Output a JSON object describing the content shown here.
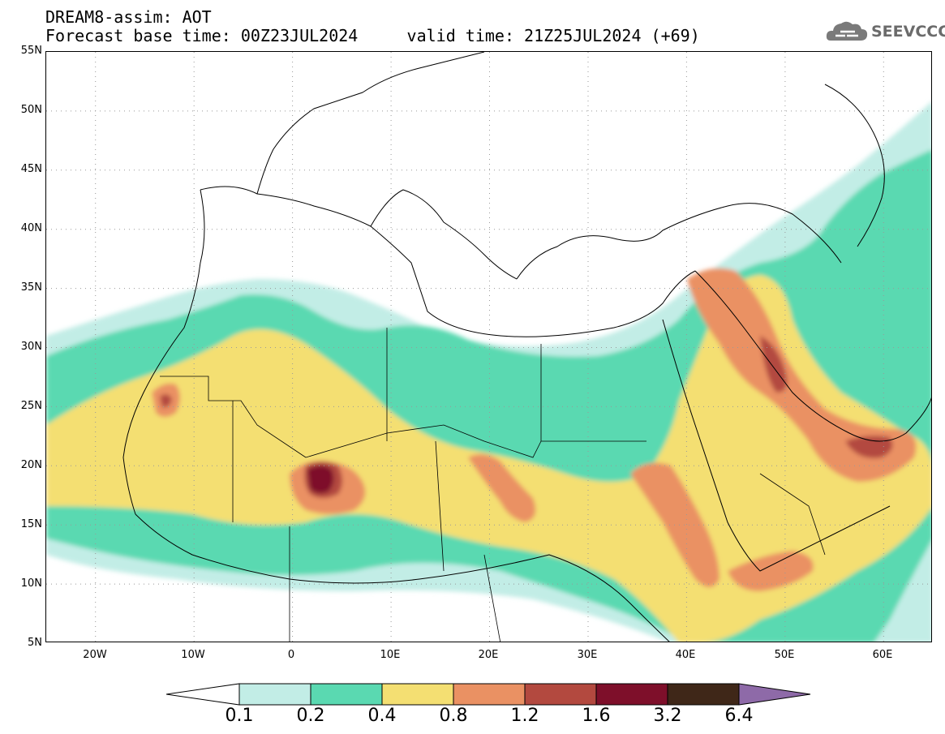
{
  "header": {
    "title": "DREAM8-assim: AOT",
    "base_time": "Forecast base time: 00Z23JUL2024",
    "valid_time": "valid time: 21Z25JUL2024 (+69)"
  },
  "logo": {
    "text": "SEEVCCC",
    "icon": "cloud-logo-icon"
  },
  "map": {
    "lat_labels": [
      "55N",
      "50N",
      "45N",
      "40N",
      "35N",
      "30N",
      "25N",
      "20N",
      "15N",
      "10N",
      "5N"
    ],
    "lon_labels": [
      "20W",
      "10W",
      "0",
      "10E",
      "20E",
      "30E",
      "40E",
      "50E",
      "60E"
    ],
    "lon_range": [
      -25,
      65
    ],
    "lat_range": [
      5,
      55
    ],
    "grid": "dotted"
  },
  "legend": {
    "levels": [
      "0.1",
      "0.2",
      "0.4",
      "0.8",
      "1.2",
      "1.6",
      "3.2",
      "6.4"
    ],
    "colors": [
      "#ffffff",
      "#c2ede6",
      "#5ad9b1",
      "#f4df72",
      "#ea9163",
      "#b3493f",
      "#7e0f2a",
      "#3f2718",
      "#8e6aa8"
    ]
  }
}
